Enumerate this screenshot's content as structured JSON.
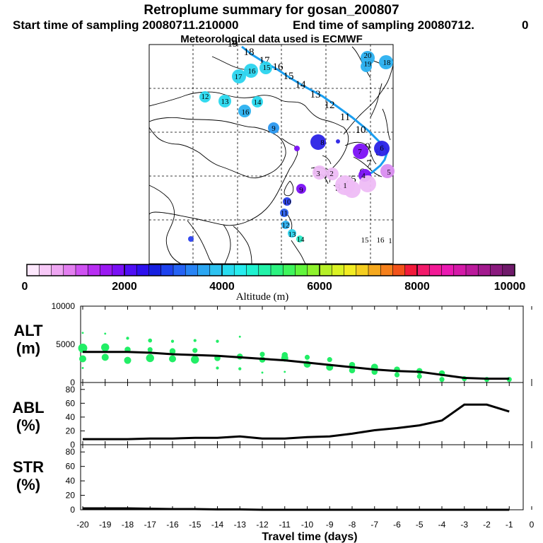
{
  "header": {
    "title": "Retroplume summary for gosan_200807",
    "start_label": "Start time of sampling 20080711.210000",
    "end_label": "End time of sampling 20080712.",
    "end_suffix": "0",
    "met_label": "Meteorological data used is ECMWF"
  },
  "colorbar": {
    "ticks": [
      "0",
      "2000",
      "4000",
      "6000",
      "8000",
      "10000"
    ],
    "label": "Altitude (m)",
    "colors": [
      "#fde8fd",
      "#f7c9f7",
      "#eea6f2",
      "#e37ff0",
      "#cf52f2",
      "#b82ef2",
      "#9b19f2",
      "#7a10f5",
      "#4f0ff5",
      "#2d10ee",
      "#1620e0",
      "#1d42ee",
      "#2563f5",
      "#2884f5",
      "#2ba6f2",
      "#2dc2f0",
      "#28dcf0",
      "#27ecee",
      "#1ff2d0",
      "#22f2a8",
      "#2cf280",
      "#3ff55c",
      "#62f53c",
      "#8ef22d",
      "#b6f028",
      "#daf224",
      "#f2ec22",
      "#f5ce20",
      "#f5a81e",
      "#f5801c",
      "#f2521a",
      "#f21a3a",
      "#f21a6a",
      "#f21a96",
      "#ea1ab2",
      "#d41aa8",
      "#bb1a9c",
      "#a21a8e",
      "#8a1a7e",
      "#6f1a6a"
    ]
  },
  "map": {
    "trajectory_labels": [
      {
        "label": "19",
        "color": "#000000"
      },
      {
        "label": "18",
        "color": "#000000"
      },
      {
        "label": "17",
        "color": "#000000"
      },
      {
        "label": "16",
        "color": "#000000"
      },
      {
        "label": "15",
        "color": "#000000"
      },
      {
        "label": "14",
        "color": "#000000"
      },
      {
        "label": "13",
        "color": "#000000"
      },
      {
        "label": "12",
        "color": "#000000"
      },
      {
        "label": "11",
        "color": "#000000"
      },
      {
        "label": "10",
        "color": "#000000"
      },
      {
        "label": "9",
        "color": "#000000"
      },
      {
        "label": "8",
        "color": "#000000"
      },
      {
        "label": "7",
        "color": "#000000"
      },
      {
        "label": "6",
        "color": "#000000"
      },
      {
        "label": "5",
        "color": "#000000"
      },
      {
        "label": "4",
        "color": "#000000"
      },
      {
        "label": "3",
        "color": "#000000"
      },
      {
        "label": "2",
        "color": "#000000"
      },
      {
        "label": "1",
        "color": "#000000"
      }
    ],
    "cluster_labels": [
      {
        "label": "20",
        "color": "#2ab0f0"
      },
      {
        "label": "19",
        "color": "#2ab0f0"
      },
      {
        "label": "18",
        "color": "#2ab0f0"
      },
      {
        "label": "17",
        "color": "#2ad4ee"
      },
      {
        "label": "16",
        "color": "#2ad4ee"
      },
      {
        "label": "15",
        "color": "#2ad4ee"
      },
      {
        "label": "12",
        "color": "#28d8ee"
      },
      {
        "label": "13",
        "color": "#28d8ee"
      },
      {
        "label": "14",
        "color": "#28d8ee"
      },
      {
        "label": "16",
        "color": "#2ab0f0"
      },
      {
        "label": "9",
        "color": "#2a98f0"
      },
      {
        "label": "8",
        "color": "#2a22e6"
      },
      {
        "label": "7",
        "color": "#7b10f5"
      },
      {
        "label": "6",
        "color": "#2a22e6"
      },
      {
        "label": "5",
        "color": "#d98df0"
      },
      {
        "label": "4",
        "color": "#e0a6f2"
      },
      {
        "label": "3",
        "color": "#e0a6f2"
      },
      {
        "label": "2",
        "color": "#e0a6f2"
      },
      {
        "label": "1",
        "color": "#e0a6f2"
      },
      {
        "label": "9",
        "color": "#7b10f5"
      },
      {
        "label": "10",
        "color": "#2a40ee"
      },
      {
        "label": "11",
        "color": "#2a60f0"
      },
      {
        "label": "12",
        "color": "#2ab0f0"
      },
      {
        "label": "13",
        "color": "#2ad4ee"
      },
      {
        "label": "14",
        "color": "#28ecc8"
      },
      {
        "label": "15",
        "color": "#28f0b0"
      },
      {
        "label": "16",
        "color": "#28f0b0"
      },
      {
        "label": "1",
        "color": "#28f0b0"
      }
    ]
  },
  "chart_data": [
    {
      "type": "scatter",
      "name": "ALT",
      "ylabel_line1": "ALT",
      "ylabel_line2": "(m)",
      "ylim": [
        0,
        10000
      ],
      "yticks": [
        "0",
        "5000",
        "10000"
      ],
      "xlim": [
        -20,
        0
      ],
      "line": {
        "x": [
          -20,
          -19,
          -18,
          -17,
          -16,
          -15,
          -14,
          -13,
          -12,
          -11,
          -10,
          -9,
          -8,
          -7,
          -6,
          -5,
          -4,
          -3,
          -2,
          -1
        ],
        "y": [
          4000,
          4000,
          4000,
          3900,
          3700,
          3600,
          3500,
          3300,
          3100,
          2900,
          2600,
          2300,
          2000,
          1700,
          1500,
          1400,
          1000,
          600,
          500,
          500
        ]
      },
      "points": {
        "x": [
          -20,
          -20,
          -20,
          -20,
          -19,
          -19,
          -19,
          -18,
          -18,
          -18,
          -17,
          -17,
          -17,
          -16,
          -16,
          -16,
          -15,
          -15,
          -15,
          -14,
          -14,
          -14,
          -13,
          -13,
          -13,
          -12,
          -12,
          -12,
          -11,
          -11,
          -11,
          -10,
          -10,
          -9,
          -9,
          -8,
          -8,
          -7,
          -7,
          -6,
          -6,
          -5,
          -5,
          -4,
          -4,
          -3,
          -2,
          -1
        ],
        "y": [
          6500,
          4500,
          3100,
          1900,
          6400,
          4600,
          3300,
          5800,
          4300,
          2900,
          5500,
          4300,
          3200,
          5400,
          4100,
          3100,
          5500,
          4200,
          3000,
          5400,
          3200,
          1900,
          6000,
          3400,
          1800,
          3700,
          3000,
          1300,
          3600,
          3200,
          1400,
          3300,
          2400,
          3000,
          2000,
          2300,
          1600,
          2000,
          1400,
          1700,
          1000,
          1500,
          800,
          1200,
          400,
          500,
          400,
          400
        ],
        "size": [
          2,
          9,
          7,
          2,
          2,
          8,
          7,
          3,
          6,
          7,
          4,
          5,
          8,
          3,
          6,
          7,
          3,
          5,
          8,
          3,
          6,
          3,
          2,
          6,
          3,
          5,
          6,
          2,
          6,
          7,
          2,
          5,
          7,
          5,
          7,
          6,
          6,
          7,
          6,
          6,
          5,
          6,
          5,
          6,
          5,
          5,
          5,
          5
        ]
      },
      "point_color": "#22ee66"
    },
    {
      "type": "line",
      "name": "ABL",
      "ylabel_line1": "ABL",
      "ylabel_line2": "(%)",
      "ylim": [
        0,
        90
      ],
      "yticks": [
        "0",
        "20",
        "40",
        "60",
        "80"
      ],
      "xlim": [
        -20,
        0
      ],
      "x": [
        -20,
        -19,
        -18,
        -17,
        -16,
        -15,
        -14,
        -13,
        -12,
        -11,
        -10,
        -9,
        -8,
        -7,
        -6,
        -5,
        -4,
        -3,
        -2,
        -1
      ],
      "y": [
        8,
        8,
        8,
        9,
        9,
        10,
        10,
        12,
        9,
        9,
        11,
        12,
        16,
        21,
        24,
        28,
        35,
        58,
        58,
        48
      ]
    },
    {
      "type": "line",
      "name": "STR",
      "ylabel_line1": "STR",
      "ylabel_line2": "(%)",
      "ylim": [
        0,
        90
      ],
      "yticks": [
        "0",
        "20",
        "40",
        "60",
        "80"
      ],
      "xlim": [
        -20,
        0
      ],
      "x": [
        -20,
        -19,
        -18,
        -17,
        -16,
        -15,
        -14,
        -13,
        -12,
        -11,
        -10,
        -9,
        -8,
        -7,
        -6,
        -5,
        -4,
        -3,
        -2,
        -1
      ],
      "y": [
        2,
        2,
        2,
        1.5,
        1,
        1,
        0.5,
        0.5,
        0,
        0,
        0,
        0,
        0,
        0,
        0,
        0,
        0,
        0,
        0,
        0
      ]
    }
  ],
  "xaxis": {
    "ticks": [
      "-20",
      "-19",
      "-18",
      "-17",
      "-16",
      "-15",
      "-14",
      "-13",
      "-12",
      "-11",
      "-10",
      "-9",
      "-8",
      "-7",
      "-6",
      "-5",
      "-4",
      "-3",
      "-2",
      "-1",
      "0"
    ],
    "label": "Travel time (days)"
  }
}
